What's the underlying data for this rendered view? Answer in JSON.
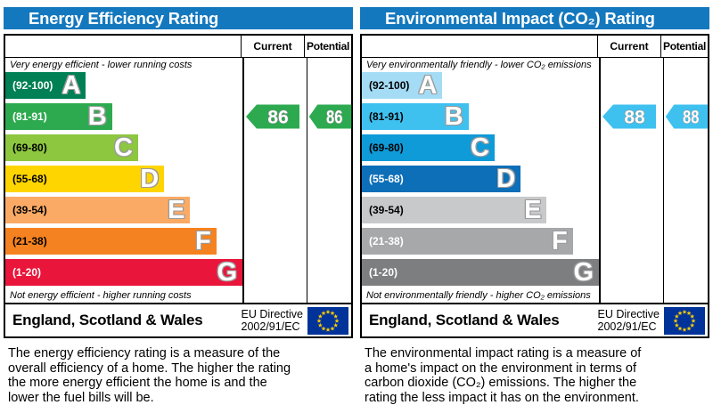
{
  "colors": {
    "header_bar": "#1478be",
    "border": "#000000",
    "flag_bg": "#003399",
    "flag_star": "#ffcc00"
  },
  "columns": {
    "current": "Current",
    "potential": "Potential"
  },
  "chart_data": [
    {
      "type": "epc-rating-bands",
      "title": "Energy Efficiency Rating",
      "top_caption": "Very energy efficient - lower running costs",
      "bottom_caption": "Not energy efficient - higher running costs",
      "bands": [
        {
          "letter": "A",
          "range_label": "(92-100)",
          "min": 92,
          "max": 100,
          "color": "#008054",
          "label_color": "#ffffff"
        },
        {
          "letter": "B",
          "range_label": "(81-91)",
          "min": 81,
          "max": 91,
          "color": "#2daa50",
          "label_color": "#ffffff"
        },
        {
          "letter": "C",
          "range_label": "(69-80)",
          "min": 69,
          "max": 80,
          "color": "#8dc63f",
          "label_color": "#000000"
        },
        {
          "letter": "D",
          "range_label": "(55-68)",
          "min": 55,
          "max": 68,
          "color": "#ffd500",
          "label_color": "#000000"
        },
        {
          "letter": "E",
          "range_label": "(39-54)",
          "min": 39,
          "max": 54,
          "color": "#fbaa65",
          "label_color": "#000000"
        },
        {
          "letter": "F",
          "range_label": "(21-38)",
          "min": 21,
          "max": 38,
          "color": "#f58220",
          "label_color": "#000000"
        },
        {
          "letter": "G",
          "range_label": "(1-20)",
          "min": 1,
          "max": 20,
          "color": "#e9153b",
          "label_color": "#ffffff"
        }
      ],
      "current": {
        "value": "86",
        "band_index": 1,
        "arrow_color": "#2daa50"
      },
      "potential": {
        "value": "86",
        "band_index": 1,
        "arrow_color": "#2daa50"
      },
      "footer_region": "England, Scotland & Wales",
      "footer_directive_line1": "EU Directive",
      "footer_directive_line2": "2002/91/EC",
      "description_lines": [
        "The energy efficiency rating is a measure of the",
        "overall efficiency of a home. The higher the rating",
        "the more energy efficient the home is and the",
        "lower the fuel bills will be."
      ]
    },
    {
      "type": "epc-rating-bands",
      "title": "Environmental Impact (CO₂) Rating",
      "top_caption": "Very environmentally friendly - lower CO₂ emissions",
      "bottom_caption": "Not environmentally friendly - higher CO₂ emissions",
      "bands": [
        {
          "letter": "A",
          "range_label": "(92-100)",
          "min": 92,
          "max": 100,
          "color": "#a4dcf5",
          "label_color": "#000000"
        },
        {
          "letter": "B",
          "range_label": "(81-91)",
          "min": 81,
          "max": 91,
          "color": "#3fc1f0",
          "label_color": "#000000"
        },
        {
          "letter": "C",
          "range_label": "(69-80)",
          "min": 69,
          "max": 80,
          "color": "#0f9ad8",
          "label_color": "#000000"
        },
        {
          "letter": "D",
          "range_label": "(55-68)",
          "min": 55,
          "max": 68,
          "color": "#0d6fb8",
          "label_color": "#ffffff"
        },
        {
          "letter": "E",
          "range_label": "(39-54)",
          "min": 39,
          "max": 54,
          "color": "#c8c9cb",
          "label_color": "#000000"
        },
        {
          "letter": "F",
          "range_label": "(21-38)",
          "min": 21,
          "max": 38,
          "color": "#a6a8aa",
          "label_color": "#ffffff"
        },
        {
          "letter": "G",
          "range_label": "(1-20)",
          "min": 1,
          "max": 20,
          "color": "#7c7e80",
          "label_color": "#ffffff"
        }
      ],
      "current": {
        "value": "88",
        "band_index": 1,
        "arrow_color": "#3fc1f0"
      },
      "potential": {
        "value": "88",
        "band_index": 1,
        "arrow_color": "#3fc1f0"
      },
      "footer_region": "England, Scotland & Wales",
      "footer_directive_line1": "EU Directive",
      "footer_directive_line2": "2002/91/EC",
      "description_lines": [
        "The environmental impact rating is a measure of",
        "a home's impact on the environment in terms of",
        "carbon dioxide (CO₂) emissions. The higher the",
        "rating the less impact it has on the environment."
      ]
    }
  ]
}
